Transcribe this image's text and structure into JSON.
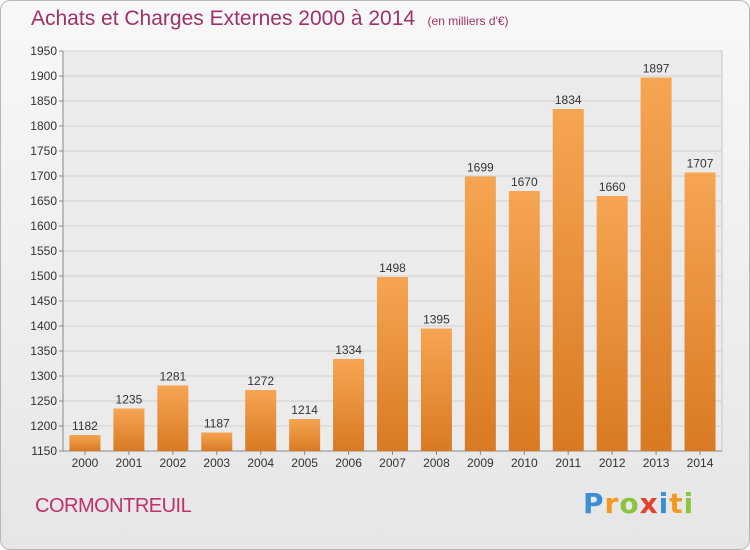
{
  "header": {
    "title": "Achats et Charges Externes 2000 à 2014",
    "unit_note": "(en milliers d'€)"
  },
  "footer": {
    "city": "CORMONTREUIL",
    "logo_text": "Proxiti"
  },
  "colors": {
    "bar_light": "#f6a552",
    "bar_dark": "#d97a22",
    "title": "#a0306a",
    "city": "#c0306a"
  },
  "chart_data": {
    "type": "bar",
    "title": "Achats et Charges Externes 2000 à 2014",
    "subtitle": "(en milliers d'€)",
    "categories": [
      "2000",
      "2001",
      "2002",
      "2003",
      "2004",
      "2005",
      "2006",
      "2007",
      "2008",
      "2009",
      "2010",
      "2011",
      "2012",
      "2013",
      "2014"
    ],
    "values": [
      1182,
      1235,
      1281,
      1187,
      1272,
      1214,
      1334,
      1498,
      1395,
      1699,
      1670,
      1834,
      1660,
      1897,
      1707
    ],
    "xlabel": "",
    "ylabel": "",
    "ylim": [
      1150,
      1950
    ],
    "yticks": [
      1150,
      1200,
      1250,
      1300,
      1350,
      1400,
      1450,
      1500,
      1550,
      1600,
      1650,
      1700,
      1750,
      1800,
      1850,
      1900,
      1950
    ],
    "grid": true,
    "legend": "none"
  }
}
